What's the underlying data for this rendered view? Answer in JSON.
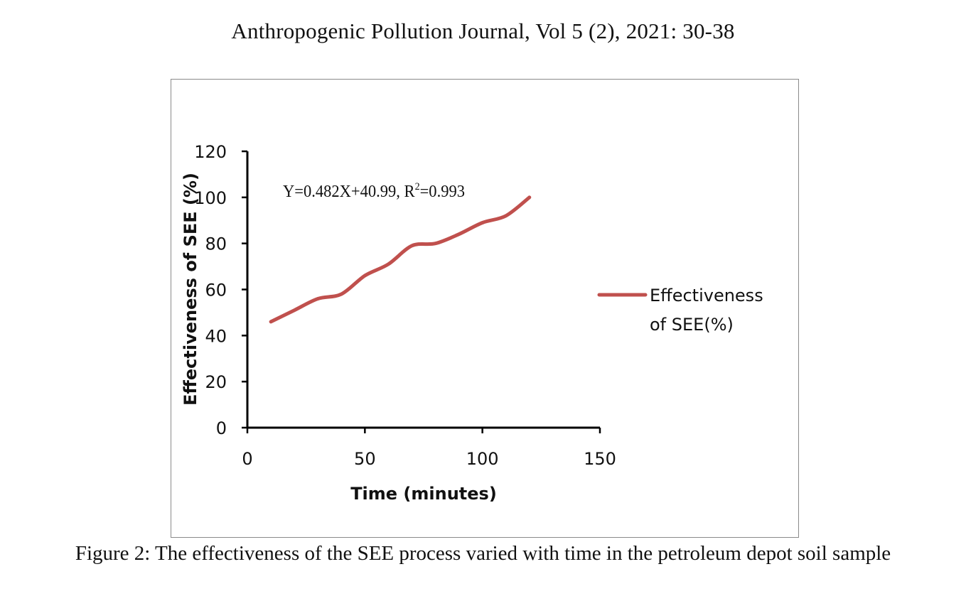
{
  "header": {
    "journal_line": "Anthropogenic Pollution Journal, Vol 5 (2), 2021: 30-38"
  },
  "caption": {
    "text": "Figure 2: The effectiveness of the SEE process varied with time in the petroleum depot soil sample"
  },
  "chart_data": {
    "type": "line",
    "title": "",
    "xlabel": "Time (minutes)",
    "ylabel": "Effectiveness of SEE (%)",
    "xlim": [
      0,
      150
    ],
    "ylim": [
      0,
      120
    ],
    "x_ticks": [
      0,
      50,
      100,
      150
    ],
    "y_ticks": [
      0,
      20,
      40,
      60,
      80,
      100,
      120
    ],
    "grid": false,
    "legend_position": "right",
    "annotation": {
      "equation_main": "Y=0.482X+40.99, R",
      "equation_sup": "2",
      "equation_tail": "=0.993"
    },
    "series": [
      {
        "name_line1": "Effectiveness",
        "name_line2": "of SEE(%)",
        "color": "#c0504d",
        "x": [
          10,
          20,
          30,
          40,
          50,
          60,
          70,
          80,
          90,
          100,
          110,
          120
        ],
        "y": [
          46,
          51,
          56,
          58,
          66,
          71,
          79,
          80,
          84,
          89,
          92,
          100
        ]
      }
    ]
  }
}
